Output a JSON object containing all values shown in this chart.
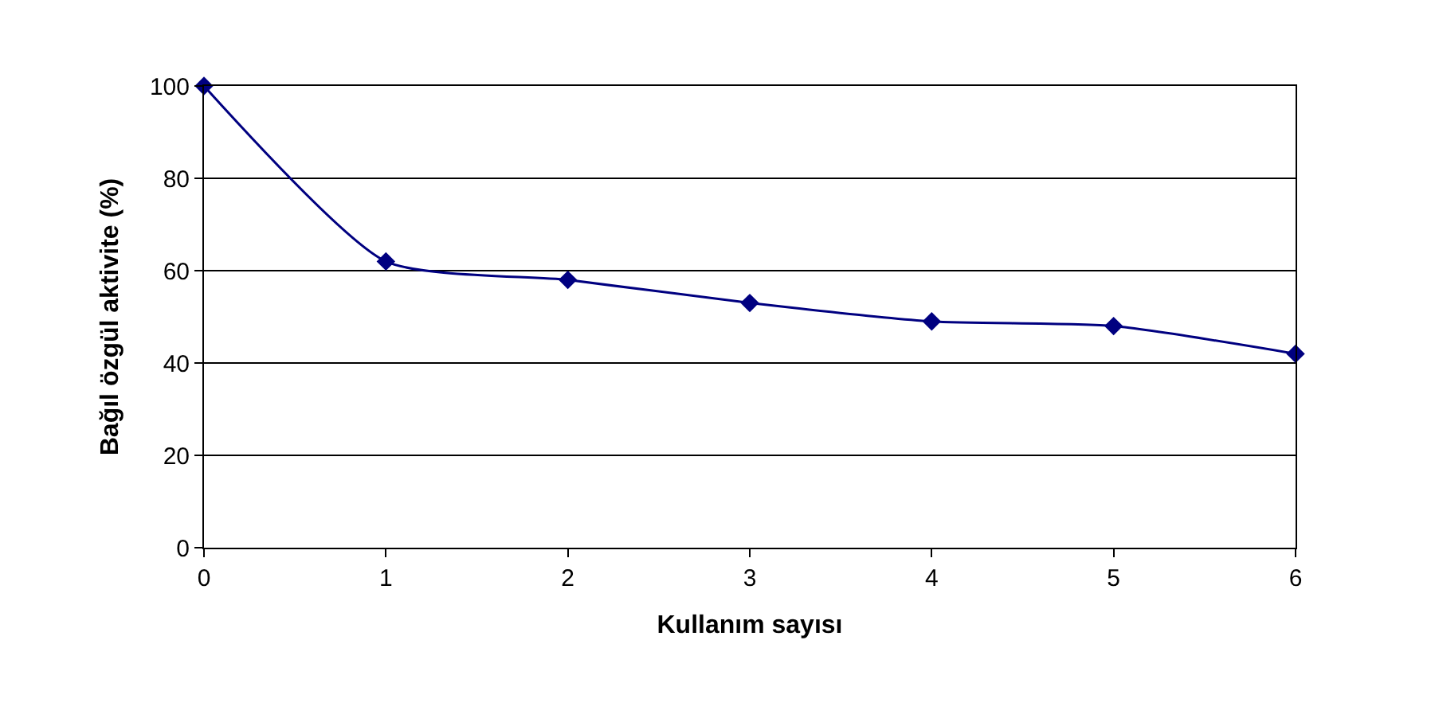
{
  "chart_data": {
    "type": "line",
    "xlabel": "Kullanım sayısı",
    "ylabel": "Bağıl özgül aktivite (%)",
    "x": [
      0,
      1,
      2,
      3,
      4,
      5,
      6
    ],
    "series": [
      {
        "color": "#000080",
        "values": [
          100,
          62,
          58,
          53,
          49,
          48,
          42
        ]
      }
    ],
    "xlim": [
      0,
      6
    ],
    "xticks": [
      0,
      1,
      2,
      3,
      4,
      5,
      6
    ],
    "ylim": [
      0,
      100
    ],
    "yticks": [
      0,
      20,
      40,
      60,
      80,
      100
    ],
    "grid": "y",
    "legend": false,
    "marker": "diamond",
    "line_style": "solid"
  }
}
